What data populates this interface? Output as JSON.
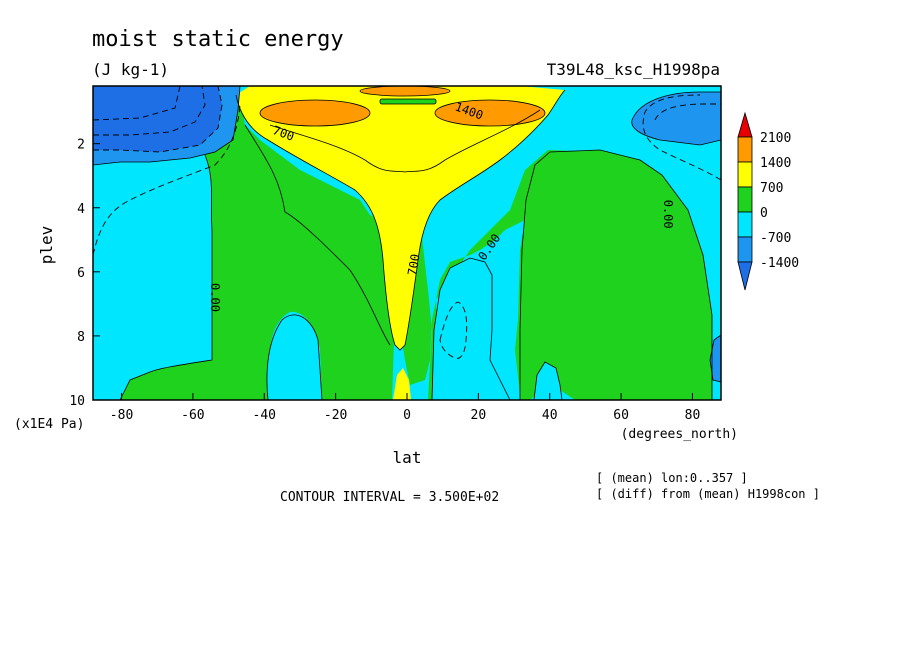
{
  "chart_data": {
    "type": "heatmap",
    "title": "moist static energy",
    "units": "(J kg-1)",
    "experiment": "T39L48_ksc_H1998pa",
    "xlabel": "lat",
    "x_units": "(degrees_north)",
    "ylabel": "plev",
    "y_units": "(x1E4 Pa)",
    "xlim": [
      -88,
      88
    ],
    "ylim": [
      10,
      0.2
    ],
    "x_ticks": [
      -80,
      -60,
      -40,
      -20,
      0,
      20,
      40,
      60,
      80
    ],
    "y_ticks": [
      2,
      4,
      6,
      8,
      10
    ],
    "contour_interval_text": "CONTOUR INTERVAL = 3.500E+02",
    "notes": [
      "[ (mean) lon:0..357 ]",
      "[ (diff) from (mean) H1998con ]"
    ],
    "colorbar": {
      "levels": [
        -1400,
        -700,
        0,
        700,
        1400,
        2100
      ],
      "labels": [
        "2100",
        "1400",
        "700",
        "0",
        "-700",
        "-1400"
      ],
      "colors": {
        "below_-1400": "#1e6ee6",
        "-1400_to_-700": "#1e96f0",
        "-700_to_0": "#00e6ff",
        "0_to_700": "#1ed21e",
        "700_to_1400": "#ffff00",
        "1400_to_2100": "#ff9b00",
        "above_2100": "#e60000"
      }
    },
    "contour_labels": [
      {
        "text": "700",
        "lat": -35,
        "plev": 1.8
      },
      {
        "text": "1400",
        "lat": 17,
        "plev": 1.1
      },
      {
        "text": "0.00",
        "lat": -55,
        "plev": 6.8
      },
      {
        "text": "700",
        "lat": 3,
        "plev": 5.8
      },
      {
        "text": "0.00",
        "lat": 24,
        "plev": 5.3
      },
      {
        "text": "0.00",
        "lat": 72,
        "plev": 4.2
      }
    ]
  }
}
